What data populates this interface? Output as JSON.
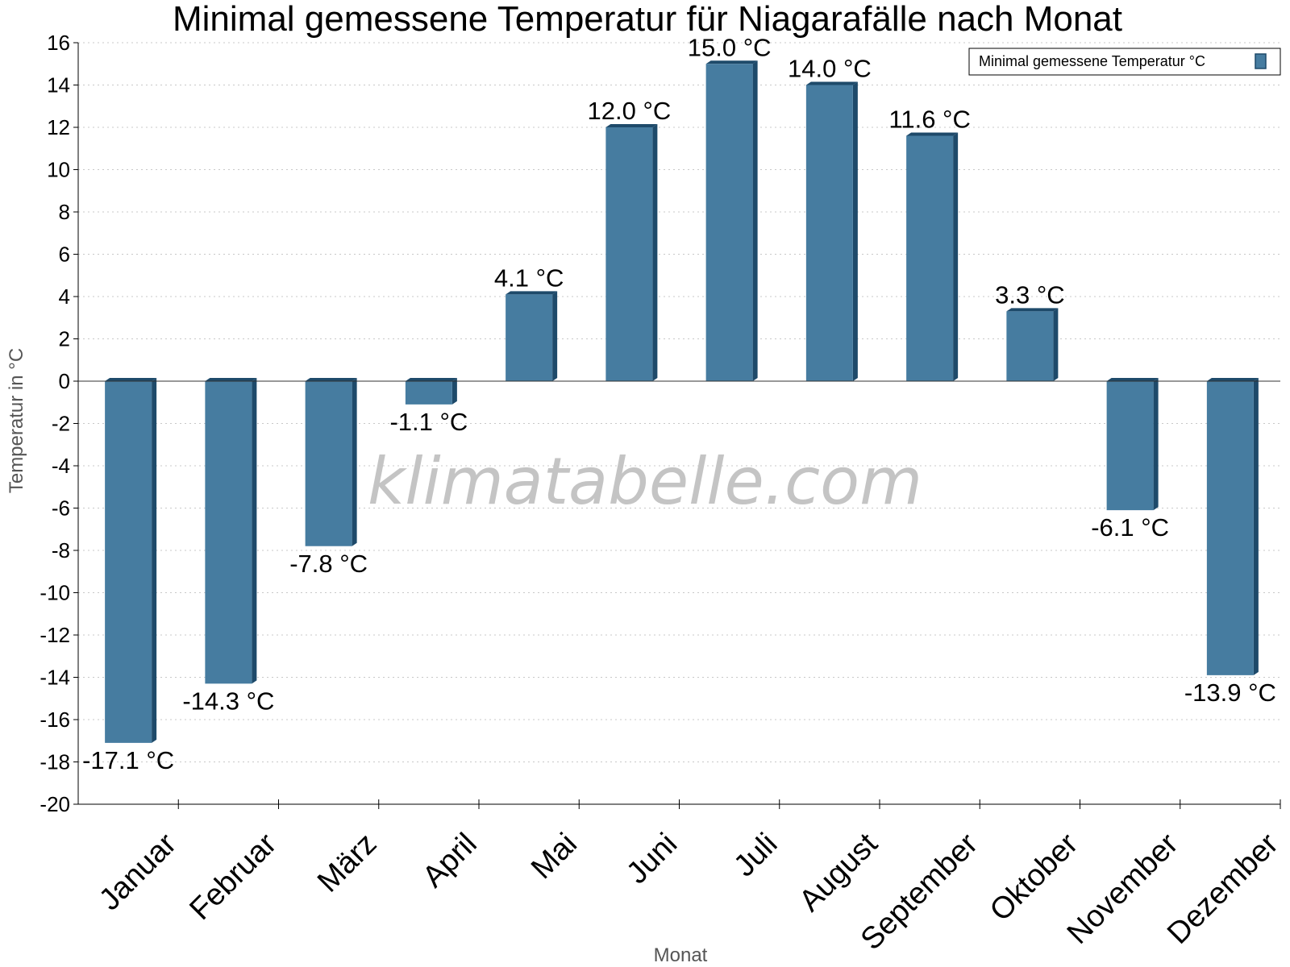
{
  "chart_data": {
    "type": "bar",
    "title": "Minimal gemessene Temperatur für Niagarafälle nach Monat",
    "xlabel": "Monat",
    "ylabel": "Temperatur in °C",
    "ylim": [
      -20,
      16
    ],
    "y_tick_step": 2,
    "grid": true,
    "legend_position": "top-right",
    "bar_color": "#467ca0",
    "bar_side_color": "#1e4a6a",
    "watermark": "klimatabelle.com",
    "categories": [
      "Januar",
      "Februar",
      "März",
      "April",
      "Mai",
      "Juni",
      "Juli",
      "August",
      "September",
      "Oktober",
      "November",
      "Dezember"
    ],
    "series": [
      {
        "name": "Minimal gemessene Temperatur °C",
        "values": [
          -17.1,
          -14.3,
          -7.8,
          -1.1,
          4.1,
          12.0,
          15.0,
          14.0,
          11.6,
          3.3,
          -6.1,
          -13.9
        ],
        "labels": [
          "-17.1 °C",
          "-14.3 °C",
          "-7.8 °C",
          "-1.1 °C",
          "4.1 °C",
          "12.0 °C",
          "15.0 °C",
          "14.0 °C",
          "11.6 °C",
          "3.3 °C",
          "-6.1 °C",
          "-13.9 °C"
        ]
      }
    ]
  }
}
